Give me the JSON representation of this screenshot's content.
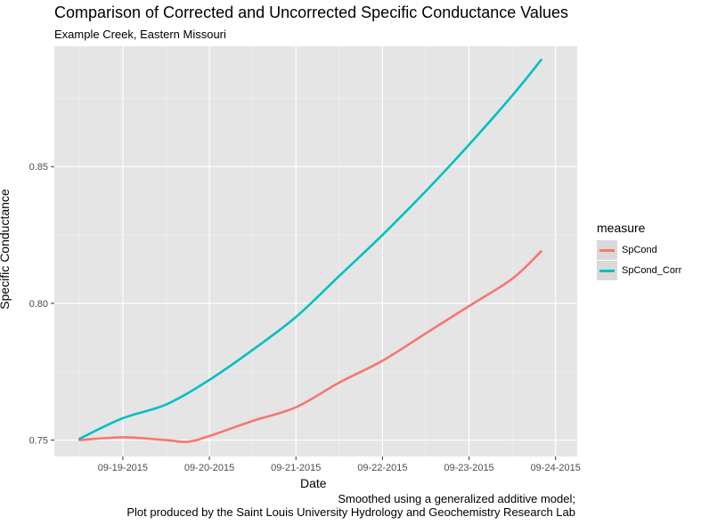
{
  "title": "Comparison of Corrected and Uncorrected Specific Conductance Values",
  "subtitle": "Example Creek, Eastern Missouri",
  "caption": [
    "Smoothed using a generalized additive model;",
    "Plot produced by the Saint Louis University Hydrology and Geochemistry Research Lab"
  ],
  "colors": {
    "panel": "#e5e5e5",
    "grid_major": "#ffffff",
    "grid_minor": "#f2f2f2"
  },
  "chart_data": {
    "type": "line",
    "xlabel": "Date",
    "ylabel": "Specific Conductance",
    "x_type": "date",
    "xlim": [
      "2015-09-18T05:00",
      "2015-09-24T06:00"
    ],
    "ylim": [
      0.744,
      0.894
    ],
    "x_ticks": [
      "2015-09-19",
      "2015-09-20",
      "2015-09-21",
      "2015-09-22",
      "2015-09-23",
      "2015-09-24"
    ],
    "x_tick_labels": [
      "09-19-2015",
      "09-20-2015",
      "09-21-2015",
      "09-22-2015",
      "09-23-2015",
      "09-24-2015"
    ],
    "y_ticks": [
      0.75,
      0.8,
      0.85
    ],
    "y_tick_labels": [
      "0.75",
      "0.80",
      "0.85"
    ],
    "grid": true,
    "legend": {
      "title": "measure",
      "position": "right"
    },
    "series": [
      {
        "name": "SpCond",
        "color": "#f8766d",
        "points": [
          [
            "2015-09-18T12:00",
            0.75
          ],
          [
            "2015-09-19T00:00",
            0.751
          ],
          [
            "2015-09-19T12:00",
            0.75
          ],
          [
            "2015-09-19T18:00",
            0.7494
          ],
          [
            "2015-09-20T00:00",
            0.7515
          ],
          [
            "2015-09-20T12:00",
            0.757
          ],
          [
            "2015-09-21T00:00",
            0.762
          ],
          [
            "2015-09-21T12:00",
            0.771
          ],
          [
            "2015-09-22T00:00",
            0.779
          ],
          [
            "2015-09-22T12:00",
            0.789
          ],
          [
            "2015-09-23T00:00",
            0.799
          ],
          [
            "2015-09-23T12:00",
            0.809
          ],
          [
            "2015-09-23T20:00",
            0.819
          ]
        ]
      },
      {
        "name": "SpCond_Corr",
        "color": "#00bfc4",
        "points": [
          [
            "2015-09-18T12:00",
            0.7505
          ],
          [
            "2015-09-19T00:00",
            0.758
          ],
          [
            "2015-09-19T12:00",
            0.763
          ],
          [
            "2015-09-20T00:00",
            0.772
          ],
          [
            "2015-09-20T12:00",
            0.783
          ],
          [
            "2015-09-21T00:00",
            0.795
          ],
          [
            "2015-09-21T12:00",
            0.81
          ],
          [
            "2015-09-22T00:00",
            0.825
          ],
          [
            "2015-09-22T12:00",
            0.841
          ],
          [
            "2015-09-23T00:00",
            0.858
          ],
          [
            "2015-09-23T12:00",
            0.876
          ],
          [
            "2015-09-23T20:00",
            0.889
          ]
        ]
      }
    ]
  }
}
